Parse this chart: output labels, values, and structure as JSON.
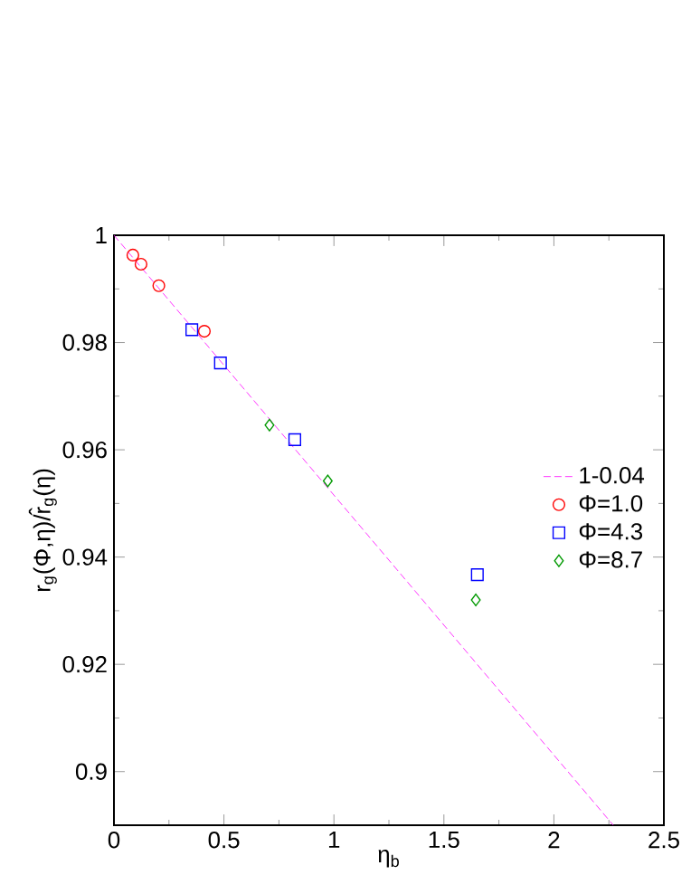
{
  "chart_data": {
    "type": "scatter",
    "xlabel": "η$_{b}$",
    "ylabel": "r$_{g}$(Φ,η)/r̂$_{g}$(η)",
    "xlim": [
      0,
      2.5
    ],
    "ylim": [
      0.89,
      1
    ],
    "xticks": [
      0,
      0.5,
      1,
      1.5,
      2,
      2.5
    ],
    "yticks": [
      0.9,
      0.92,
      0.94,
      0.96,
      0.98,
      1
    ],
    "legend": "right",
    "series": [
      {
        "name": "1-0.04",
        "type": "line",
        "line_style": "dashed",
        "marker": "none",
        "color": "#ff00ff",
        "x": [
          0,
          2.27
        ],
        "values": [
          1,
          0.89
        ]
      },
      {
        "name": "Φ=1.0",
        "marker": "circle",
        "color": "#ff0000",
        "x": [
          0.086,
          0.123,
          0.204,
          0.411
        ],
        "values": [
          0.9963,
          0.9946,
          0.9906,
          0.9821
        ]
      },
      {
        "name": "Φ=4.3",
        "marker": "square",
        "color": "#0000ff",
        "x": [
          0.354,
          0.484,
          0.822,
          1.652
        ],
        "values": [
          0.9824,
          0.9762,
          0.9619,
          0.9367
        ]
      },
      {
        "name": "Φ=8.7",
        "marker": "diamond",
        "color": "#009900",
        "x": [
          0.707,
          0.972,
          1.645
        ],
        "values": [
          0.9646,
          0.9542,
          0.932
        ]
      }
    ]
  }
}
